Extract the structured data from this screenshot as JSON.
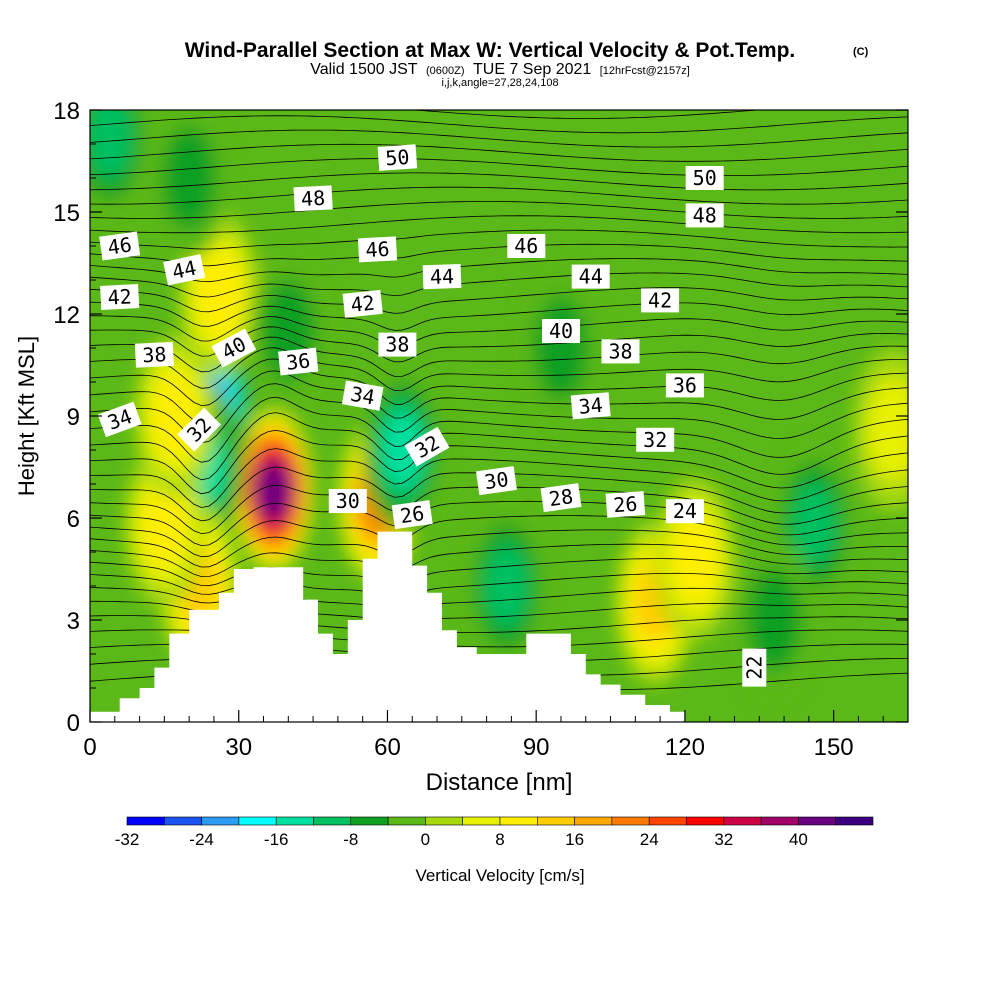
{
  "header": {
    "title": "Wind-Parallel Section at Max W: Vertical Velocity & Pot.Temp.",
    "title_mark": "(C)",
    "valid_prefix": "Valid 1500 JST",
    "valid_utc": "(0600Z)",
    "valid_date": "TUE 7 Sep 2021",
    "forecast": "[12hrFcst@2157z]",
    "grid_info": "i,j,k,angle=27,28,24,108"
  },
  "chart_data": {
    "type": "heatmap",
    "xlabel": "Distance [nm]",
    "ylabel": "Height [Kft MSL]",
    "xlim": [
      0,
      165
    ],
    "ylim": [
      0,
      18
    ],
    "x_ticks": [
      0,
      30,
      60,
      90,
      120,
      150
    ],
    "y_ticks": [
      0,
      3,
      6,
      9,
      12,
      15,
      18
    ],
    "colorbar": {
      "label": "Vertical Velocity [cm/s]",
      "ticks": [
        -32,
        -24,
        -16,
        -8,
        0,
        8,
        16,
        24,
        32,
        40
      ],
      "min": -32,
      "max": 48,
      "step": 4,
      "colors": [
        "#0000ff",
        "#1a55f0",
        "#2b9cf2",
        "#00ffff",
        "#00e0a0",
        "#00c060",
        "#10a020",
        "#5ab818",
        "#a6d80c",
        "#e6f000",
        "#ffee00",
        "#ffce00",
        "#ffa800",
        "#ff7a00",
        "#ff4400",
        "#ff0000",
        "#cc0044",
        "#a00068",
        "#6a0080",
        "#3a0080"
      ]
    },
    "terrain_profile": [
      [
        0,
        0.3
      ],
      [
        6,
        0.3
      ],
      [
        6,
        0.7
      ],
      [
        10,
        0.7
      ],
      [
        10,
        1.0
      ],
      [
        13,
        1.0
      ],
      [
        13,
        1.6
      ],
      [
        16,
        1.6
      ],
      [
        16,
        2.6
      ],
      [
        20,
        2.6
      ],
      [
        20,
        3.3
      ],
      [
        26,
        3.3
      ],
      [
        26,
        3.8
      ],
      [
        29,
        3.8
      ],
      [
        29,
        4.5
      ],
      [
        33,
        4.5
      ],
      [
        33,
        4.55
      ],
      [
        43,
        4.55
      ],
      [
        43,
        3.6
      ],
      [
        46,
        3.6
      ],
      [
        46,
        2.6
      ],
      [
        49,
        2.6
      ],
      [
        49,
        2.0
      ],
      [
        52,
        2.0
      ],
      [
        52,
        3.0
      ],
      [
        55,
        3.0
      ],
      [
        55,
        4.8
      ],
      [
        58,
        4.8
      ],
      [
        58,
        5.6
      ],
      [
        65,
        5.6
      ],
      [
        65,
        4.6
      ],
      [
        68,
        4.6
      ],
      [
        68,
        3.8
      ],
      [
        71,
        3.8
      ],
      [
        71,
        2.7
      ],
      [
        74,
        2.7
      ],
      [
        74,
        2.2
      ],
      [
        78,
        2.2
      ],
      [
        78,
        2.0
      ],
      [
        88,
        2.0
      ],
      [
        88,
        2.6
      ],
      [
        97,
        2.6
      ],
      [
        97,
        2.0
      ],
      [
        100,
        2.0
      ],
      [
        100,
        1.4
      ],
      [
        103,
        1.4
      ],
      [
        103,
        1.1
      ],
      [
        107,
        1.1
      ],
      [
        107,
        0.8
      ],
      [
        112,
        0.8
      ],
      [
        112,
        0.5
      ],
      [
        117,
        0.5
      ],
      [
        117,
        0.3
      ],
      [
        120,
        0.3
      ],
      [
        120,
        0.0
      ]
    ],
    "vertical_velocity_features": [
      {
        "x": 37,
        "z": 6.8,
        "w": 44,
        "name": "updraft"
      },
      {
        "x": 58,
        "z": 6.5,
        "w": 24,
        "name": "updraft"
      },
      {
        "x": 25,
        "z": 9.2,
        "w": -24,
        "name": "downdraft"
      },
      {
        "x": 23,
        "z": 7.5,
        "w": -16,
        "name": "downdraft"
      },
      {
        "x": 63,
        "z": 8.0,
        "w": -16,
        "name": "downdraft"
      },
      {
        "x": 4,
        "z": 17.2,
        "w": -12,
        "name": "downdraft"
      },
      {
        "x": 22,
        "z": 4.0,
        "w": 16,
        "name": "updraft"
      },
      {
        "x": 114,
        "z": 3.5,
        "w": 14,
        "name": "updraft"
      },
      {
        "x": 122,
        "z": 4.8,
        "w": 10,
        "name": "updraft"
      },
      {
        "x": 146,
        "z": 5.8,
        "w": -12,
        "name": "downdraft"
      },
      {
        "x": 138,
        "z": 3.0,
        "w": -8,
        "name": "downdraft"
      },
      {
        "x": 84,
        "z": 4.0,
        "w": -10,
        "name": "downdraft"
      },
      {
        "x": 15,
        "z": 5.8,
        "w": 12,
        "name": "updraft"
      },
      {
        "x": 17,
        "z": 9.0,
        "w": 12,
        "name": "updraft"
      },
      {
        "x": 26,
        "z": 12.6,
        "w": 10,
        "name": "updraft"
      },
      {
        "x": 40,
        "z": 11.5,
        "w": -8,
        "name": "downdraft"
      },
      {
        "x": 20,
        "z": 16,
        "w": -8,
        "name": "downdraft"
      },
      {
        "x": 95,
        "z": 11,
        "w": -6,
        "name": "downdraft"
      },
      {
        "x": 162,
        "z": 8.6,
        "w": 6,
        "name": "updraft"
      }
    ],
    "theta_labels": [
      {
        "text": "50",
        "x": 62,
        "z": 16.6,
        "angle": -4
      },
      {
        "text": "50",
        "x": 124,
        "z": 16.0,
        "angle": 0
      },
      {
        "text": "48",
        "x": 45,
        "z": 15.4,
        "angle": -3
      },
      {
        "text": "48",
        "x": 124,
        "z": 14.9,
        "angle": 0
      },
      {
        "text": "46",
        "x": 6,
        "z": 14.0,
        "angle": -8
      },
      {
        "text": "46",
        "x": 58,
        "z": 13.9,
        "angle": -3
      },
      {
        "text": "46",
        "x": 88,
        "z": 14.0,
        "angle": 0
      },
      {
        "text": "44",
        "x": 19,
        "z": 13.3,
        "angle": -12
      },
      {
        "text": "44",
        "x": 71,
        "z": 13.1,
        "angle": -2
      },
      {
        "text": "44",
        "x": 101,
        "z": 13.1,
        "angle": 0
      },
      {
        "text": "42",
        "x": 6,
        "z": 12.5,
        "angle": -3
      },
      {
        "text": "42",
        "x": 55,
        "z": 12.3,
        "angle": -6
      },
      {
        "text": "42",
        "x": 115,
        "z": 12.4,
        "angle": 0
      },
      {
        "text": "40",
        "x": 29,
        "z": 11.0,
        "angle": -28
      },
      {
        "text": "40",
        "x": 95,
        "z": 11.5,
        "angle": 0
      },
      {
        "text": "38",
        "x": 13,
        "z": 10.8,
        "angle": -3
      },
      {
        "text": "38",
        "x": 62,
        "z": 11.1,
        "angle": 0
      },
      {
        "text": "38",
        "x": 107,
        "z": 10.9,
        "angle": 0
      },
      {
        "text": "36",
        "x": 42,
        "z": 10.6,
        "angle": -6
      },
      {
        "text": "36",
        "x": 120,
        "z": 9.9,
        "angle": 0
      },
      {
        "text": "34",
        "x": 6,
        "z": 8.9,
        "angle": -20
      },
      {
        "text": "34",
        "x": 55,
        "z": 9.6,
        "angle": 10
      },
      {
        "text": "34",
        "x": 101,
        "z": 9.3,
        "angle": -5
      },
      {
        "text": "32",
        "x": 22,
        "z": 8.6,
        "angle": -45
      },
      {
        "text": "32",
        "x": 68,
        "z": 8.1,
        "angle": -30
      },
      {
        "text": "32",
        "x": 114,
        "z": 8.3,
        "angle": 0
      },
      {
        "text": "30",
        "x": 52,
        "z": 6.5,
        "angle": 0
      },
      {
        "text": "30",
        "x": 82,
        "z": 7.1,
        "angle": -8
      },
      {
        "text": "28",
        "x": 95,
        "z": 6.6,
        "angle": -8
      },
      {
        "text": "26",
        "x": 65,
        "z": 6.1,
        "angle": -8
      },
      {
        "text": "26",
        "x": 108,
        "z": 6.4,
        "angle": -4
      },
      {
        "text": "24",
        "x": 120,
        "z": 6.2,
        "angle": 0
      },
      {
        "text": "22",
        "x": 134,
        "z": 1.6,
        "angle": -90
      }
    ]
  }
}
